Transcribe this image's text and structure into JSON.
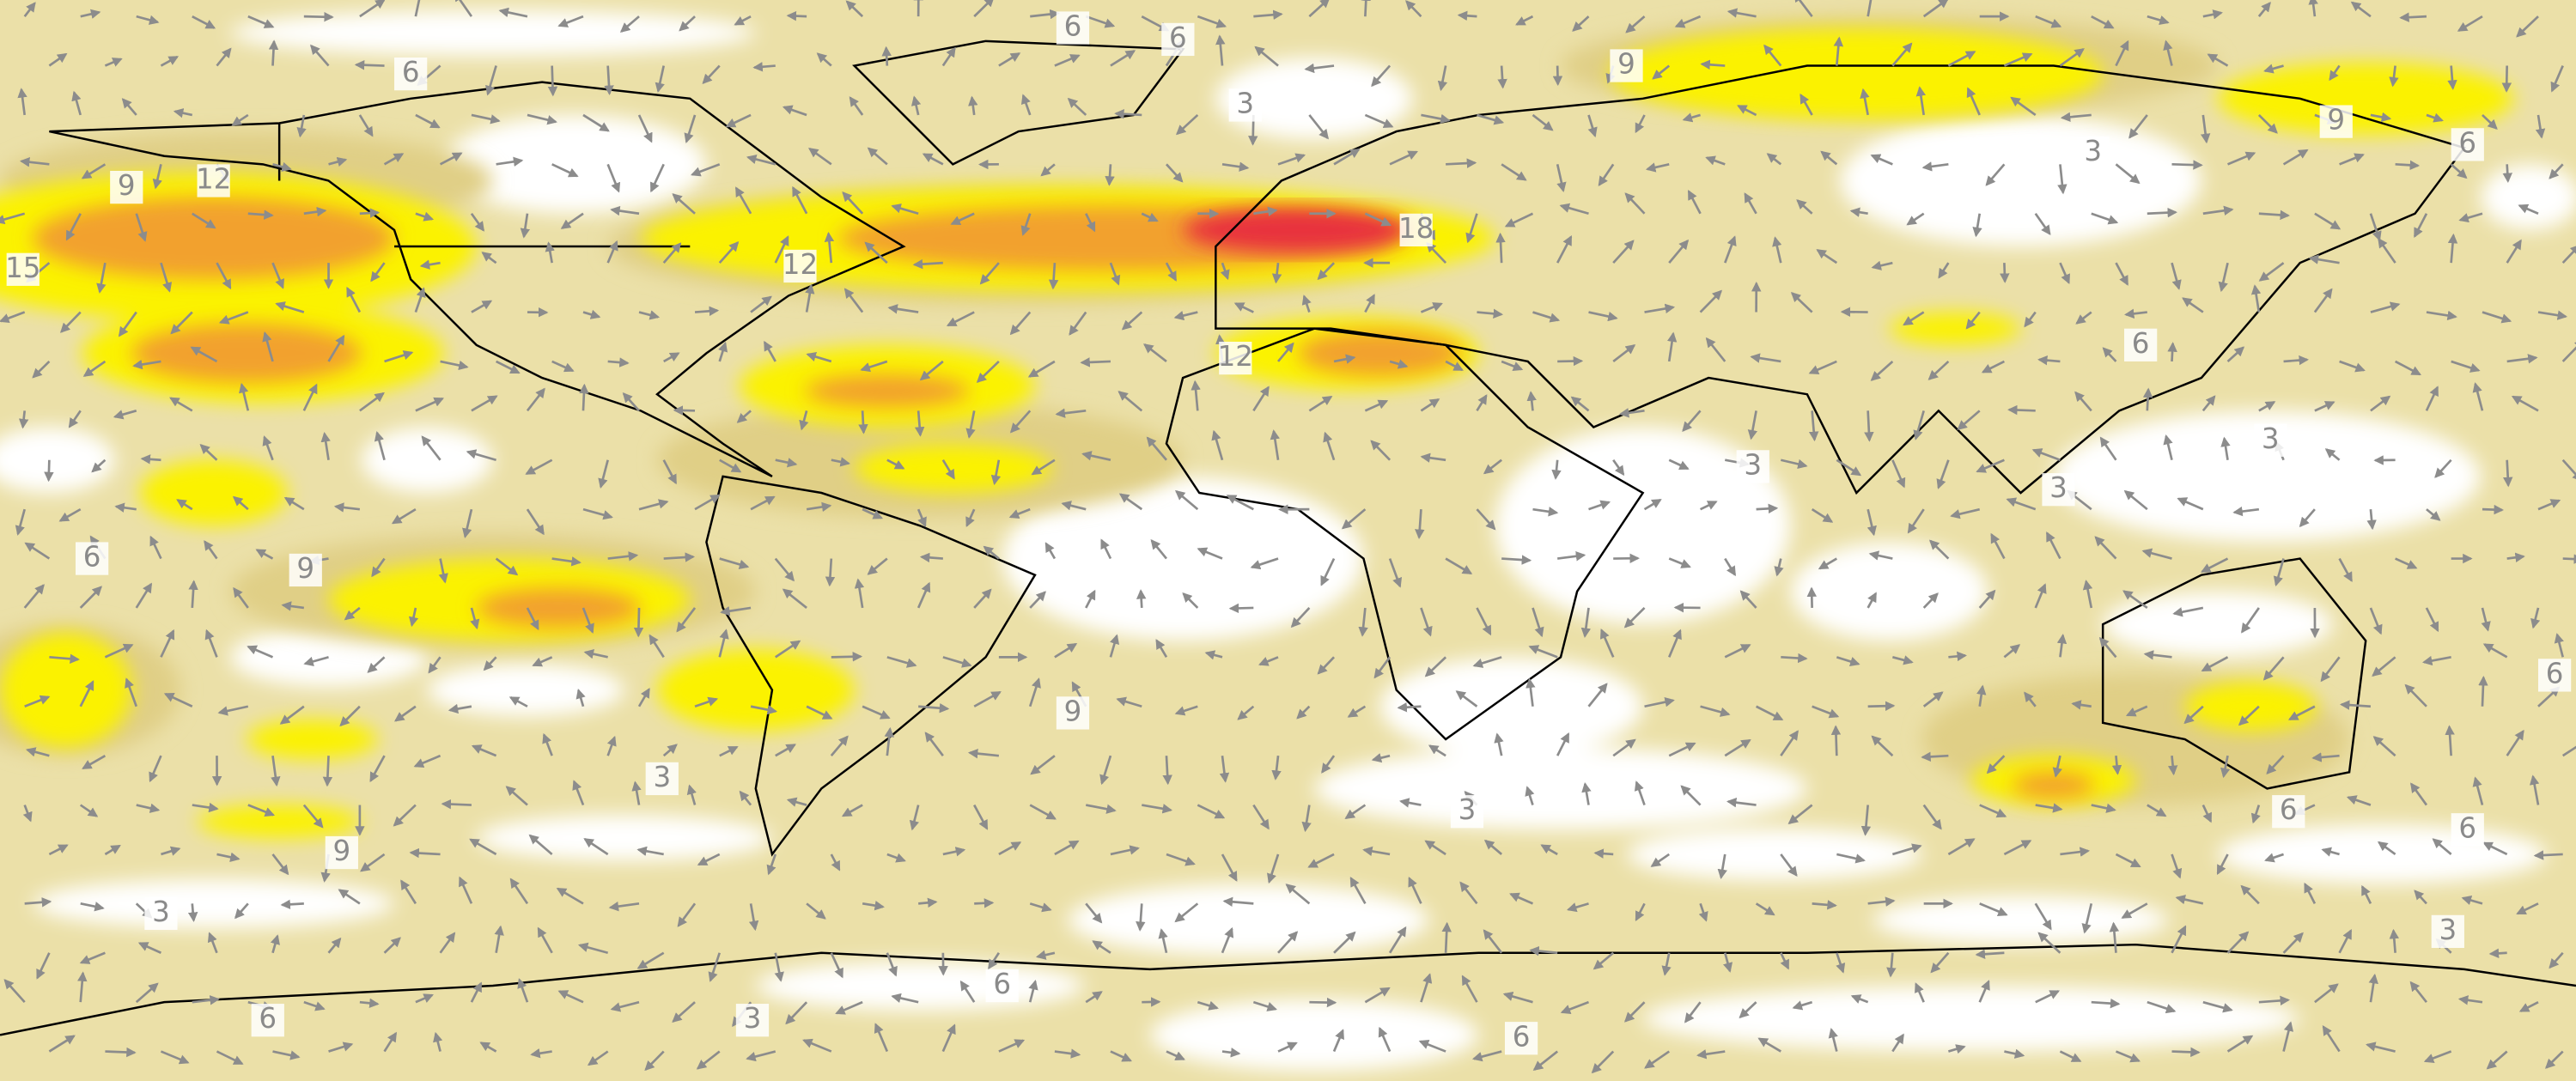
{
  "map": {
    "contour_labels": [
      "6",
      "6",
      "6",
      "3",
      "9",
      "9",
      "6",
      "3",
      "9",
      "12",
      "15",
      "12",
      "18",
      "12",
      "6",
      "3",
      "3",
      "3",
      "6",
      "9",
      "9",
      "6",
      "3",
      "3",
      "6",
      "6",
      "9",
      "3",
      "3",
      "6",
      "6",
      "3",
      "6"
    ]
  }
}
